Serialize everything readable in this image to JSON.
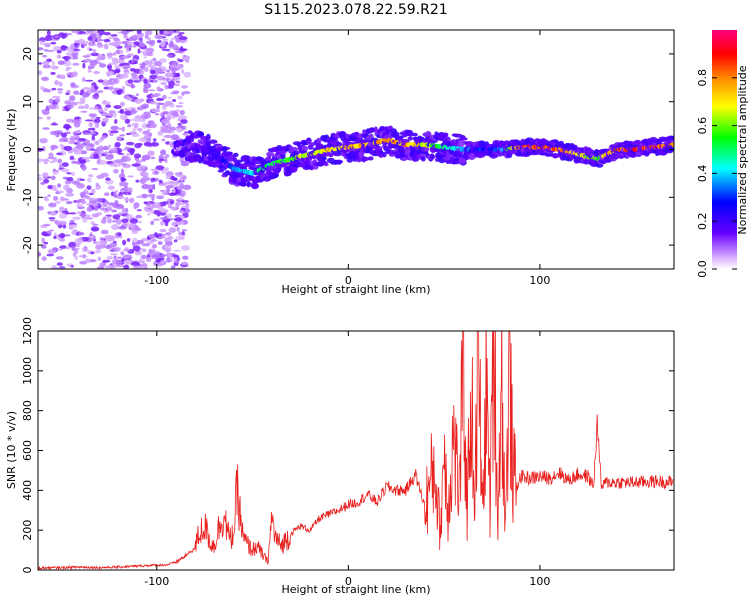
{
  "figure": {
    "title": "S115.2023.078.22.59.R21"
  },
  "chart_data": [
    {
      "type": "heatmap",
      "xlabel": "Height of straight line (km)",
      "ylabel": "Frequency (Hz)",
      "xlim": [
        -162,
        170
      ],
      "ylim": [
        -25,
        25
      ],
      "xticks": [
        -100,
        0,
        100
      ],
      "yticks": [
        -20,
        -10,
        0,
        10,
        20
      ],
      "grid": false,
      "colorbar": {
        "label": "Normalized spectral amplitude",
        "range": [
          0,
          1
        ],
        "ticks": [
          "0.0",
          "0.2",
          "0.4",
          "0.6",
          "0.8"
        ],
        "colors": [
          "#ffffff",
          "#6600ff",
          "#0000ff",
          "#00ffff",
          "#00ff00",
          "#ffff00",
          "#ff8800",
          "#ff0000",
          "#ff0080"
        ]
      },
      "noise_region_x": [
        -162,
        -90
      ],
      "ridge": {
        "x": [
          -90,
          -80,
          -70,
          -60,
          -50,
          -40,
          -30,
          -20,
          -10,
          0,
          10,
          20,
          30,
          40,
          50,
          60,
          70,
          80,
          90,
          100,
          110,
          120,
          130,
          140,
          150,
          160,
          170
        ],
        "freq": [
          0,
          1,
          -1,
          -4,
          -5,
          -3,
          -2,
          -1,
          0,
          0.5,
          1,
          2,
          1,
          1,
          0.5,
          0,
          0,
          0,
          0.5,
          0.5,
          0,
          -1,
          -2,
          0,
          0,
          0.5,
          1
        ],
        "amp": [
          0.05,
          0.15,
          0.2,
          0.35,
          0.45,
          0.55,
          0.6,
          0.7,
          0.75,
          0.75,
          0.8,
          0.85,
          0.8,
          0.7,
          0.5,
          0.4,
          0.3,
          0.35,
          0.9,
          0.92,
          0.85,
          0.7,
          0.6,
          0.85,
          0.95,
          0.9,
          0.85
        ]
      }
    },
    {
      "type": "line",
      "xlabel": "Height of straight line (km)",
      "ylabel": "SNR (10 * v/v)",
      "xlim": [
        -162,
        170
      ],
      "ylim": [
        0,
        1200
      ],
      "xticks": [
        -100,
        0,
        100
      ],
      "yticks": [
        0,
        200,
        400,
        600,
        800,
        1000,
        1200
      ],
      "grid": false,
      "series": [
        {
          "color": "#e8201e",
          "x": [
            -162,
            -150,
            -140,
            -130,
            -120,
            -110,
            -100,
            -95,
            -90,
            -85,
            -80,
            -78,
            -75,
            -72,
            -70,
            -68,
            -65,
            -62,
            -60,
            -58,
            -55,
            -52,
            -50,
            -48,
            -45,
            -42,
            -40,
            -38,
            -35,
            -32,
            -30,
            -28,
            -25,
            -20,
            -15,
            -10,
            -5,
            0,
            5,
            10,
            15,
            20,
            25,
            30,
            35,
            40,
            45,
            48,
            50,
            52,
            55,
            58,
            60,
            62,
            64,
            66,
            68,
            70,
            72,
            74,
            76,
            78,
            80,
            82,
            84,
            86,
            88,
            90,
            95,
            100,
            105,
            110,
            115,
            120,
            125,
            128,
            130,
            132,
            135,
            140,
            150,
            160,
            170
          ],
          "y": [
            10,
            12,
            15,
            12,
            15,
            20,
            25,
            25,
            40,
            70,
            110,
            180,
            220,
            140,
            120,
            200,
            280,
            150,
            180,
            400,
            160,
            120,
            100,
            120,
            80,
            40,
            260,
            160,
            120,
            160,
            180,
            200,
            220,
            200,
            260,
            280,
            300,
            330,
            340,
            380,
            340,
            420,
            400,
            400,
            480,
            320,
            520,
            180,
            620,
            300,
            680,
            360,
            1050,
            280,
            920,
            360,
            1100,
            250,
            960,
            320,
            1200,
            250,
            1000,
            200,
            1000,
            480,
            420,
            470,
            460,
            470,
            460,
            490,
            450,
            480,
            470,
            420,
            750,
            420,
            440,
            440,
            440,
            445,
            440
          ]
        }
      ]
    }
  ]
}
